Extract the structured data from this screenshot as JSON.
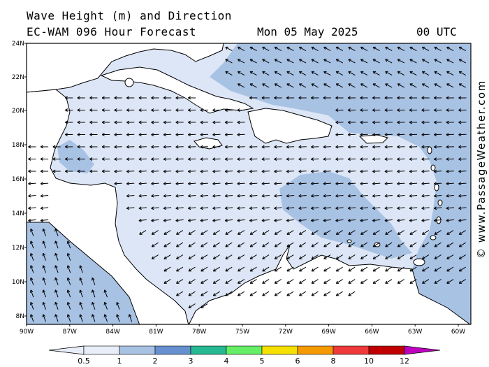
{
  "header": {
    "line1": "Wave Height (m) and Direction",
    "model": "EC-WAM 096 Hour Forecast",
    "date": "Mon 05 May 2025",
    "time": "00 UTC"
  },
  "map": {
    "lat_labels": [
      "24N",
      "22N",
      "20N",
      "18N",
      "16N",
      "14N",
      "12N",
      "10N",
      "8N"
    ],
    "lon_labels": [
      "90W",
      "87W",
      "84W",
      "81W",
      "78W",
      "75W",
      "72W",
      "69W",
      "66W",
      "63W",
      "60W"
    ],
    "direction_note": "arrows point toward west / west-southwest across basin, north-northeast in Pacific"
  },
  "colorbar": {
    "ticks": [
      "0.5",
      "1",
      "2",
      "3",
      "4",
      "5",
      "6",
      "8",
      "10",
      "12"
    ],
    "colors": [
      "#e8eef8",
      "#a8c2e4",
      "#6690d0",
      "#26b890",
      "#66ee66",
      "#f5e000",
      "#f59a00",
      "#ee3a3a",
      "#c00000",
      "#c000c0"
    ]
  },
  "palette": {
    "light": "#dce6f6",
    "medium": "#a8c2e4",
    "land": "#ffffff",
    "coast": "#000000"
  },
  "credit": "© www.PassageWeather.com"
}
